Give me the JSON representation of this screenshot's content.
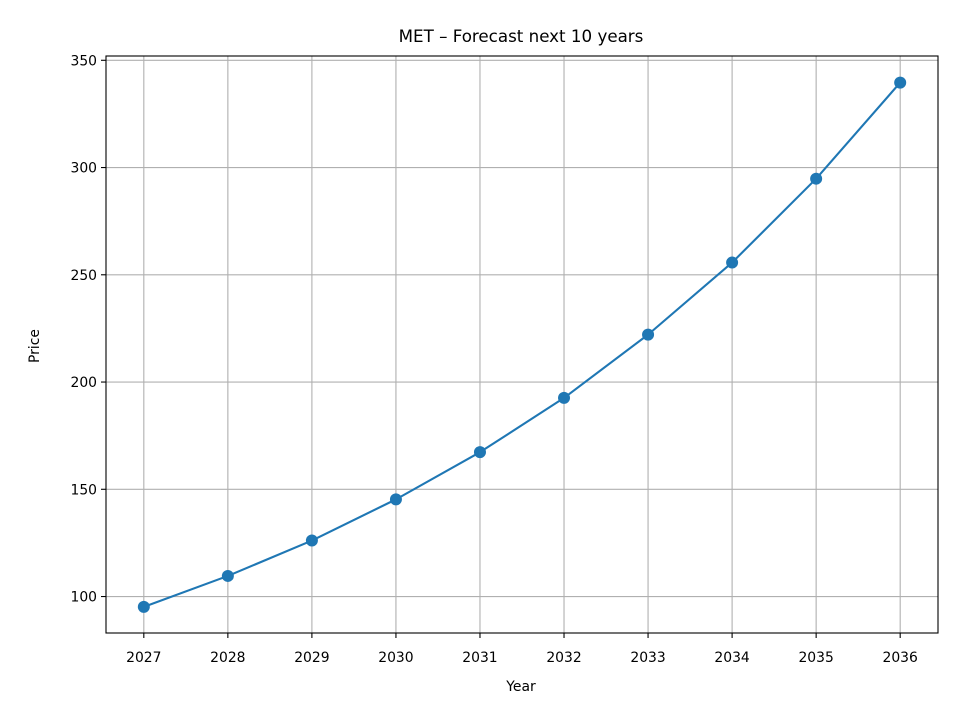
{
  "chart_data": {
    "type": "line",
    "title": "MET – Forecast next 10 years",
    "xlabel": "Year",
    "ylabel": "Price",
    "x": [
      2027,
      2028,
      2029,
      2030,
      2031,
      2032,
      2033,
      2034,
      2035,
      2036
    ],
    "x_ticks": [
      "2027",
      "2028",
      "2029",
      "2030",
      "2031",
      "2032",
      "2033",
      "2034",
      "2035",
      "2036"
    ],
    "y_ticks": [
      100,
      150,
      200,
      250,
      300,
      350
    ],
    "xlim": [
      2026.55,
      2036.45
    ],
    "ylim": [
      83,
      352
    ],
    "grid": true,
    "series": [
      {
        "color": "#1f77b4",
        "marker": "circle",
        "values": [
          95.2,
          109.6,
          126.1,
          145.3,
          167.3,
          192.6,
          222.1,
          255.7,
          294.8,
          339.6
        ]
      }
    ]
  }
}
